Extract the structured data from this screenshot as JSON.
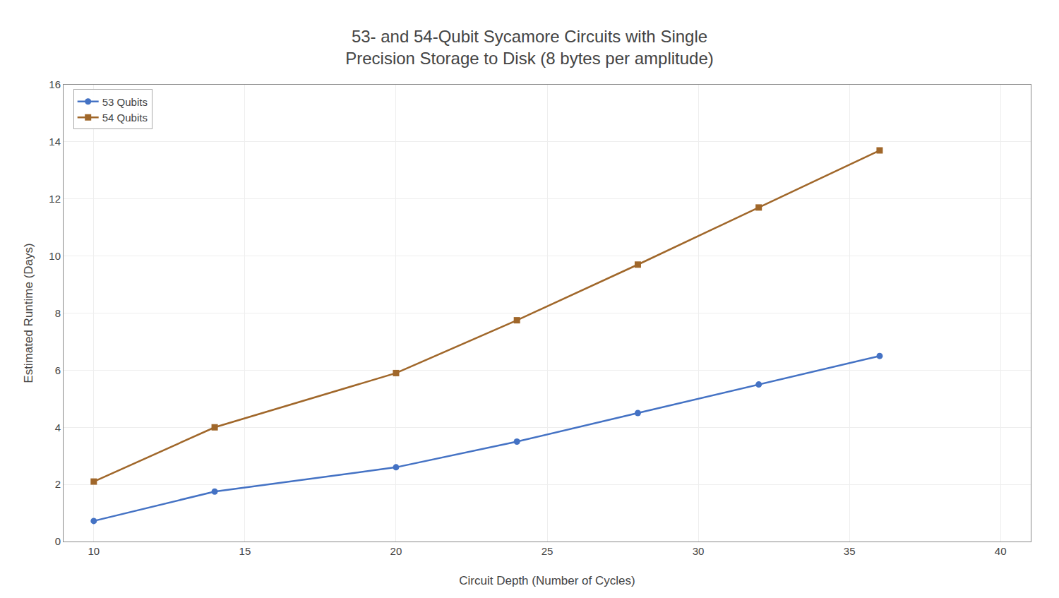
{
  "chart_data": {
    "type": "line",
    "title": "53- and 54-Qubit Sycamore Circuits with Single\nPrecision Storage to Disk (8 bytes per amplitude)",
    "xlabel": "Circuit Depth (Number of Cycles)",
    "ylabel": "Estimated Runtime (Days)",
    "x": [
      10,
      14,
      20,
      24,
      28,
      32,
      36
    ],
    "series": [
      {
        "name": "53 Qubits",
        "color": "#4472C4",
        "marker": "circle",
        "values": [
          0.72,
          1.75,
          2.6,
          3.5,
          4.5,
          5.5,
          6.5
        ]
      },
      {
        "name": "54 Qubits",
        "color": "#A0672A",
        "marker": "square",
        "values": [
          2.1,
          4.0,
          5.9,
          7.75,
          9.7,
          11.7,
          13.7
        ]
      }
    ],
    "xlim": [
      9,
      41
    ],
    "ylim": [
      0,
      16
    ],
    "xticks": [
      10,
      15,
      20,
      25,
      30,
      35,
      40
    ],
    "yticks": [
      0,
      2,
      4,
      6,
      8,
      10,
      12,
      14,
      16
    ],
    "grid": true,
    "legend": "upper left"
  }
}
